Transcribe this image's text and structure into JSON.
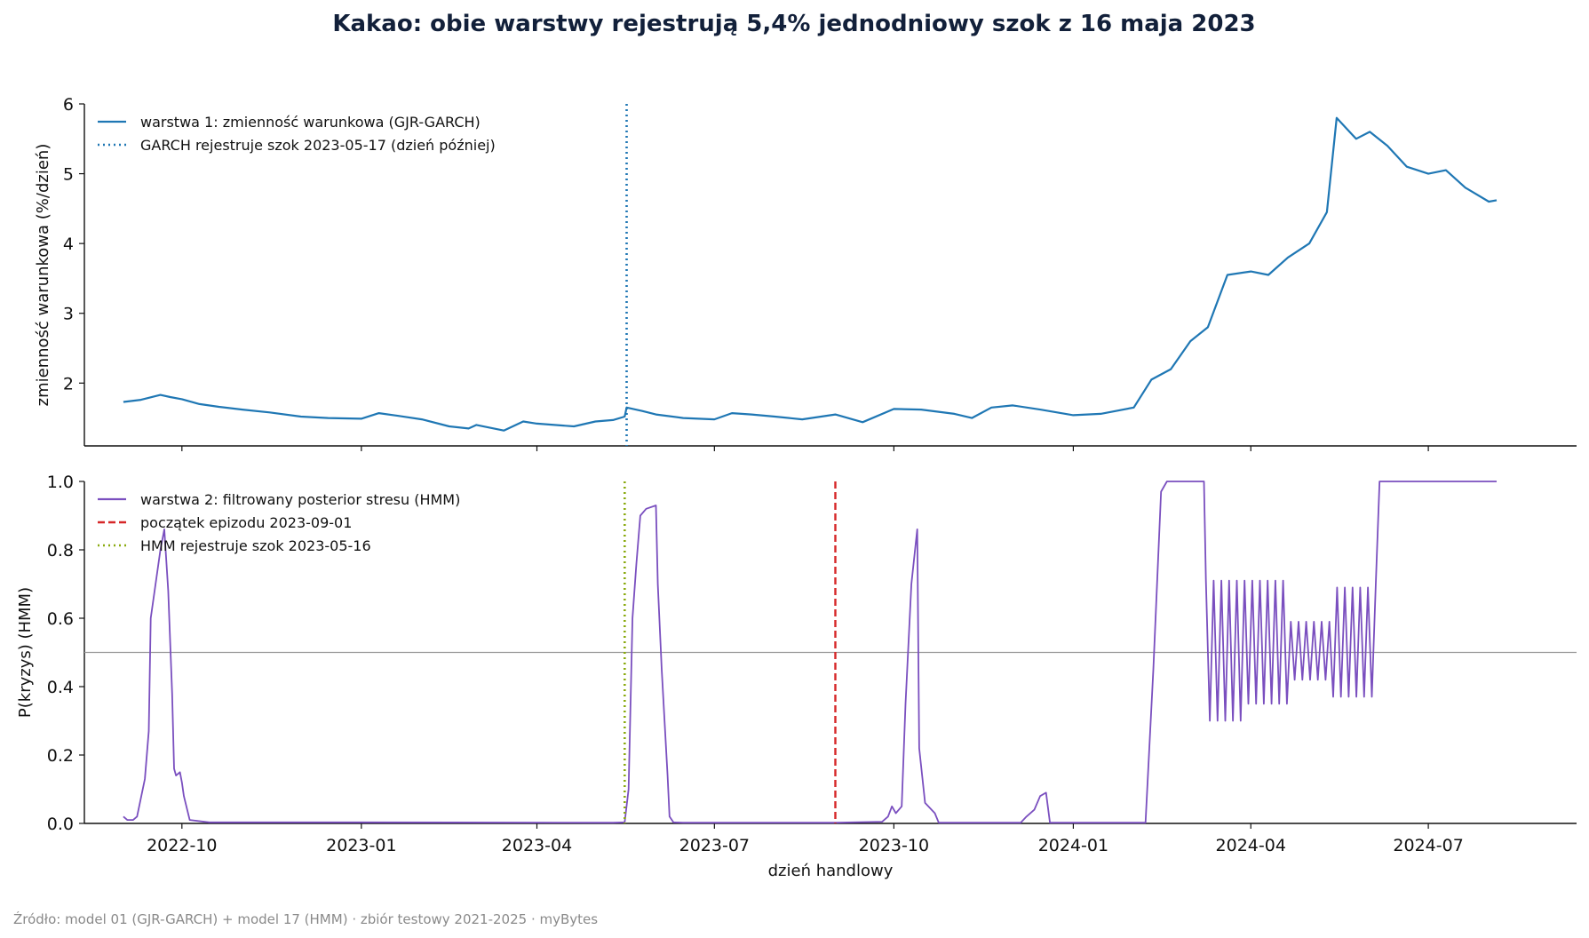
{
  "title": "Kakao: obie warstwy rejestrują 5,4% jednodniowy szok z 16 maja 2023",
  "source": "Źródło: model 01 (GJR-GARCH) + model 17 (HMM) · zbiór testowy 2021-2025 · myBytes",
  "colors": {
    "garch": "#1f77b4",
    "hmm": "#7a4fbf",
    "episode": "#d62728",
    "hmm_marker": "#8aaa0f",
    "threshold": "#999999",
    "title": "#12203a"
  },
  "chart_data": [
    {
      "type": "line",
      "panel": "top",
      "ylabel": "zmienność warunkowa (%/dzień)",
      "xlabel": "",
      "ylim": [
        1.1,
        6.0
      ],
      "yticks": [
        "2",
        "3",
        "4",
        "5",
        "6"
      ],
      "xlim": [
        "2022-08-12",
        "2024-09-15"
      ],
      "xticks": [
        "2022-10",
        "2023-01",
        "2023-04",
        "2023-07",
        "2023-10",
        "2024-01",
        "2024-04",
        "2024-07"
      ],
      "grid": false,
      "legend": "top-left",
      "series": [
        {
          "name": "warstwa 1: zmienność warunkowa (GJR-GARCH)",
          "x": [
            "2022-09-01",
            "2022-09-10",
            "2022-09-20",
            "2022-09-25",
            "2022-10-01",
            "2022-10-10",
            "2022-10-20",
            "2022-11-01",
            "2022-11-15",
            "2022-12-01",
            "2022-12-15",
            "2023-01-01",
            "2023-01-10",
            "2023-01-20",
            "2023-02-01",
            "2023-02-15",
            "2023-02-25",
            "2023-03-01",
            "2023-03-15",
            "2023-03-25",
            "2023-04-01",
            "2023-04-10",
            "2023-04-20",
            "2023-05-01",
            "2023-05-10",
            "2023-05-16",
            "2023-05-17",
            "2023-05-25",
            "2023-06-01",
            "2023-06-15",
            "2023-07-01",
            "2023-07-10",
            "2023-07-20",
            "2023-08-01",
            "2023-08-15",
            "2023-09-01",
            "2023-09-15",
            "2023-10-01",
            "2023-10-15",
            "2023-11-01",
            "2023-11-10",
            "2023-11-20",
            "2023-12-01",
            "2023-12-15",
            "2024-01-01",
            "2024-01-15",
            "2024-02-01",
            "2024-02-10",
            "2024-02-20",
            "2024-03-01",
            "2024-03-10",
            "2024-03-20",
            "2024-04-01",
            "2024-04-10",
            "2024-04-20",
            "2024-05-01",
            "2024-05-10",
            "2024-05-15",
            "2024-05-25",
            "2024-06-01",
            "2024-06-10",
            "2024-06-20",
            "2024-07-01",
            "2024-07-10",
            "2024-07-20",
            "2024-08-01",
            "2024-08-05"
          ],
          "values": [
            1.73,
            1.76,
            1.83,
            1.8,
            1.77,
            1.7,
            1.66,
            1.62,
            1.58,
            1.52,
            1.5,
            1.49,
            1.57,
            1.53,
            1.48,
            1.38,
            1.35,
            1.4,
            1.32,
            1.45,
            1.42,
            1.4,
            1.38,
            1.45,
            1.47,
            1.52,
            1.65,
            1.6,
            1.55,
            1.5,
            1.48,
            1.57,
            1.55,
            1.52,
            1.48,
            1.55,
            1.44,
            1.63,
            1.62,
            1.56,
            1.5,
            1.65,
            1.68,
            1.62,
            1.54,
            1.56,
            1.65,
            2.05,
            2.2,
            2.6,
            2.8,
            3.55,
            3.6,
            3.55,
            3.8,
            4.0,
            4.45,
            5.8,
            5.5,
            5.6,
            5.4,
            5.1,
            5.0,
            5.05,
            4.8,
            4.6,
            4.62
          ]
        },
        {
          "name": "GARCH rejestruje szok 2023-05-17 (dzień później)",
          "marker_date": "2023-05-17"
        }
      ]
    },
    {
      "type": "line",
      "panel": "bottom",
      "ylabel": "P(kryzys) (HMM)",
      "xlabel": "dzień handlowy",
      "ylim": [
        0.0,
        1.0
      ],
      "yticks": [
        "0.0",
        "0.2",
        "0.4",
        "0.6",
        "0.8",
        "1.0"
      ],
      "xlim": [
        "2022-08-12",
        "2024-09-15"
      ],
      "xticks": [
        "2022-10",
        "2023-01",
        "2023-04",
        "2023-07",
        "2023-10",
        "2024-01",
        "2024-04",
        "2024-07"
      ],
      "threshold": 0.5,
      "grid": false,
      "legend": "top-left",
      "series": [
        {
          "name": "warstwa 2: filtrowany posterior stresu (HMM)",
          "x": [
            "2022-09-01",
            "2022-09-03",
            "2022-09-06",
            "2022-09-08",
            "2022-09-12",
            "2022-09-14",
            "2022-09-15",
            "2022-09-20",
            "2022-09-22",
            "2022-09-24",
            "2022-09-26",
            "2022-09-27",
            "2022-09-28",
            "2022-09-30",
            "2022-10-01",
            "2022-10-02",
            "2022-10-05",
            "2022-10-15",
            "2023-01-01",
            "2023-05-10",
            "2023-05-16",
            "2023-05-18",
            "2023-05-20",
            "2023-05-22",
            "2023-05-24",
            "2023-05-27",
            "2023-06-01",
            "2023-06-02",
            "2023-06-04",
            "2023-06-07",
            "2023-06-08",
            "2023-06-10",
            "2023-06-15",
            "2023-09-01",
            "2023-09-25",
            "2023-09-28",
            "2023-09-30",
            "2023-10-02",
            "2023-10-05",
            "2023-10-07",
            "2023-10-10",
            "2023-10-13",
            "2023-10-14",
            "2023-10-17",
            "2023-10-22",
            "2023-10-24",
            "2023-12-05",
            "2023-12-08",
            "2023-12-12",
            "2023-12-15",
            "2023-12-18",
            "2023-12-20",
            "2024-02-07",
            "2024-02-11",
            "2024-02-15",
            "2024-02-18",
            "2024-02-22",
            "2024-03-06",
            "2024-03-08"
          ],
          "values": [
            0.02,
            0.01,
            0.01,
            0.02,
            0.13,
            0.27,
            0.6,
            0.8,
            0.86,
            0.68,
            0.38,
            0.16,
            0.14,
            0.15,
            0.12,
            0.08,
            0.01,
            0.003,
            0.003,
            0.002,
            0.003,
            0.1,
            0.6,
            0.76,
            0.9,
            0.92,
            0.93,
            0.7,
            0.45,
            0.14,
            0.02,
            0.003,
            0.002,
            0.002,
            0.005,
            0.02,
            0.05,
            0.03,
            0.05,
            0.35,
            0.7,
            0.86,
            0.22,
            0.06,
            0.03,
            0.002,
            0.002,
            0.02,
            0.04,
            0.08,
            0.09,
            0.002,
            0.002,
            0.45,
            0.97,
            1.0,
            1.0,
            1.0,
            1.0
          ],
          "oscillation": {
            "start": "2024-03-09",
            "end": "2024-06-04",
            "lows": [
              0.3,
              0.35,
              0.42,
              0.37
            ],
            "highs": [
              0.71,
              0.71,
              0.59,
              0.69
            ]
          },
          "tail": {
            "x": [
              "2024-06-06",
              "2024-08-05"
            ],
            "values": [
              1.0,
              1.0
            ]
          }
        },
        {
          "name": "początek epizodu 2023-09-01",
          "marker_date": "2023-09-01"
        },
        {
          "name": "HMM rejestruje szok 2023-05-16",
          "marker_date": "2023-05-16"
        }
      ]
    }
  ]
}
